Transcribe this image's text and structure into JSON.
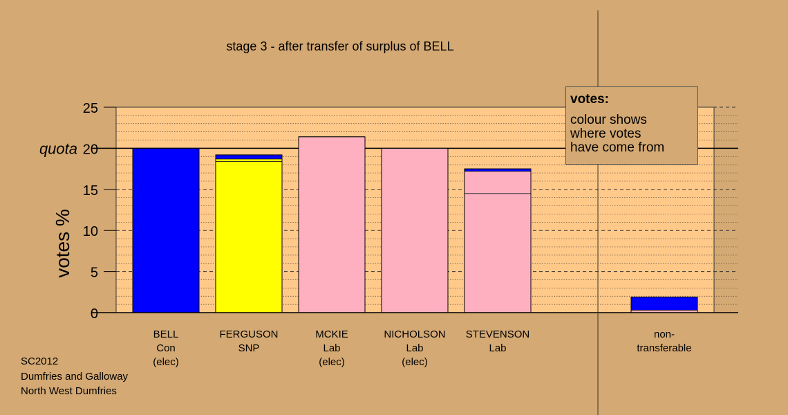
{
  "chart_data": {
    "type": "bar",
    "stacked": true,
    "title": "stage 3 - after transfer of surplus of BELL",
    "ylabel": "votes %",
    "xlabel": "",
    "ylim": [
      0,
      25
    ],
    "yticks": [
      0,
      5,
      10,
      15,
      20,
      25
    ],
    "quota_label": "quota",
    "quota_value": 20,
    "grid": "horizontal dashed",
    "categories": [
      [
        "BELL",
        "Con",
        "(elec)"
      ],
      [
        "FERGUSON",
        "SNP"
      ],
      [
        "MCKIE",
        "Lab",
        "(elec)"
      ],
      [
        "NICHOLSON",
        "Lab",
        "(elec)"
      ],
      [
        "STEVENSON",
        "Lab"
      ],
      [
        "non-",
        "transferable"
      ]
    ],
    "bars": [
      {
        "segments": [
          {
            "value": 20.0,
            "color": "#0000ff"
          }
        ]
      },
      {
        "segments": [
          {
            "value": 18.4,
            "color": "#ffff00"
          },
          {
            "value": 0.3,
            "color": "#ffff00"
          },
          {
            "value": 0.5,
            "color": "#0000ff"
          }
        ]
      },
      {
        "segments": [
          {
            "value": 21.4,
            "color": "#ffb0c0"
          }
        ]
      },
      {
        "segments": [
          {
            "value": 20.0,
            "color": "#ffb0c0"
          }
        ]
      },
      {
        "segments": [
          {
            "value": 14.5,
            "color": "#ffb0c0"
          },
          {
            "value": 2.7,
            "color": "#ffb0c0"
          },
          {
            "value": 0.3,
            "color": "#0000ff"
          }
        ]
      },
      {
        "segments": [
          {
            "value": 0.3,
            "color": "#ffb0c0"
          },
          {
            "value": 1.6,
            "color": "#0000ff"
          }
        ]
      }
    ],
    "legend": {
      "title": "votes:",
      "lines": [
        "colour shows",
        "where votes",
        "have come from"
      ],
      "placement": "top-right"
    },
    "colors": {
      "background": "#d4a973",
      "plot_background": "#ffc98a",
      "con": "#0000ff",
      "snp": "#ffff00",
      "lab": "#ffb0c0"
    }
  },
  "footer": {
    "lines": [
      "SC2012",
      "Dumfries and Galloway",
      "North West Dumfries"
    ]
  }
}
